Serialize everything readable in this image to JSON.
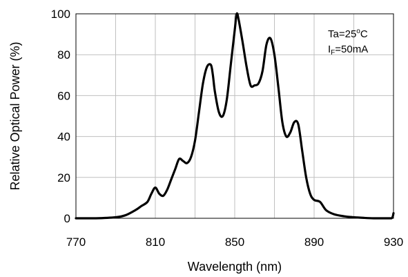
{
  "chart_data": {
    "type": "line",
    "xlabel": "Wavelength  (nm)",
    "ylabel": "Relative Optical Power  (%)",
    "xlim": [
      770,
      930
    ],
    "ylim": [
      0,
      100
    ],
    "x_ticks": [
      "770",
      "810",
      "850",
      "890",
      "930"
    ],
    "y_ticks": [
      "0",
      "20",
      "40",
      "60",
      "80",
      "100"
    ],
    "grid": true,
    "annotation": {
      "line1": "Ta=25",
      "line1_sup": "o",
      "line1_unit": "C",
      "line2_main": "I",
      "line2_sub": "F",
      "line2_rest": "=50mA"
    },
    "series": [
      {
        "color": "#000000",
        "x": [
          770,
          780,
          790,
          795,
          800,
          803,
          806,
          808,
          810,
          812,
          814,
          816,
          818,
          820,
          822,
          824,
          826,
          828,
          830,
          832,
          834,
          836,
          838,
          839,
          840,
          842,
          844,
          846,
          848,
          850,
          851,
          852,
          854,
          856,
          858,
          860,
          862,
          864,
          866,
          868,
          870,
          872,
          874,
          876,
          878,
          880,
          882,
          884,
          886,
          888,
          890,
          893,
          896,
          900,
          905,
          910,
          915,
          920,
          925,
          929,
          930
        ],
        "y": [
          0,
          0,
          0.5,
          1.5,
          4,
          6,
          8,
          12,
          15,
          12,
          11,
          14,
          19,
          24,
          29,
          28,
          27,
          30,
          38,
          52,
          66,
          74,
          75,
          70,
          62,
          52,
          50,
          58,
          75,
          92,
          100,
          97,
          86,
          74,
          65,
          65,
          66,
          72,
          85,
          88,
          80,
          64,
          47,
          40,
          42,
          47,
          46,
          33,
          20,
          12,
          9,
          8,
          4,
          2,
          1,
          0.5,
          0.2,
          0,
          0,
          0,
          2.5
        ]
      }
    ]
  }
}
